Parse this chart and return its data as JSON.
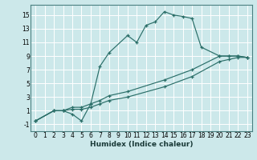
{
  "xlabel": "Humidex (Indice chaleur)",
  "bg_color": "#cce8ea",
  "grid_color": "#b8d8da",
  "line_color": "#2a6e68",
  "xlim": [
    -0.5,
    23.5
  ],
  "ylim": [
    -2,
    16.5
  ],
  "xticks": [
    0,
    1,
    2,
    3,
    4,
    5,
    6,
    7,
    8,
    9,
    10,
    11,
    12,
    13,
    14,
    15,
    16,
    17,
    18,
    19,
    20,
    21,
    22,
    23
  ],
  "yticks": [
    -1,
    1,
    3,
    5,
    7,
    9,
    11,
    13,
    15
  ],
  "series1_x": [
    0,
    2,
    3,
    4,
    5,
    6,
    7,
    8,
    10,
    11,
    12,
    13,
    14,
    15,
    16,
    17,
    18,
    20,
    21,
    22,
    23
  ],
  "series1_y": [
    -0.5,
    1,
    1,
    0.5,
    -0.5,
    2.0,
    7.5,
    9.5,
    12,
    11,
    13.5,
    14,
    15.5,
    15,
    14.8,
    14.5,
    10.3,
    9,
    9,
    9,
    8.8
  ],
  "series2_x": [
    0,
    2,
    3,
    4,
    5,
    6,
    7,
    8,
    10,
    14,
    17,
    20,
    21,
    22,
    23
  ],
  "series2_y": [
    -0.5,
    1,
    1,
    1.5,
    1.5,
    2.0,
    2.5,
    3.2,
    3.8,
    5.5,
    7.0,
    9.0,
    9.0,
    9.0,
    8.8
  ],
  "series3_x": [
    0,
    2,
    3,
    4,
    5,
    6,
    7,
    8,
    10,
    14,
    17,
    20,
    21,
    22,
    23
  ],
  "series3_y": [
    -0.5,
    1,
    1,
    1.2,
    1.2,
    1.5,
    2.0,
    2.5,
    3.0,
    4.5,
    6.0,
    8.2,
    8.5,
    8.8,
    8.8
  ],
  "marker": "+",
  "tick_fontsize": 5.5,
  "xlabel_fontsize": 6.5
}
